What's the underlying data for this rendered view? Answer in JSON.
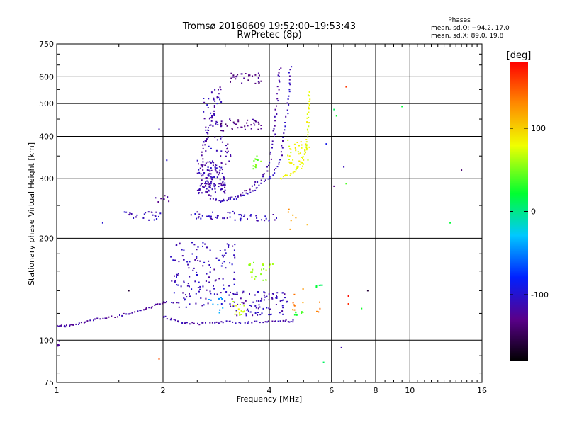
{
  "chart_data": {
    "type": "scatter",
    "title": "Tromsø 20160609 19:52:00–19:53:43",
    "subtitle": "RwPretec (8p)",
    "xlabel": "Frequency [MHz]",
    "ylabel": "Stationary phase Virtual Height [km]",
    "x_scale": "log",
    "y_scale": "log",
    "xlim": [
      1,
      16
    ],
    "ylim": [
      75,
      750
    ],
    "x_ticks": [
      1,
      2,
      4,
      6,
      8,
      10,
      16
    ],
    "x_tick_labels": [
      "1",
      "2",
      "4",
      "6",
      "8",
      "10",
      "16"
    ],
    "y_ticks": [
      75,
      100,
      200,
      300,
      400,
      500,
      600,
      750
    ],
    "y_tick_labels": [
      "75",
      "100",
      "200",
      "300",
      "400",
      "500",
      "600",
      "750"
    ],
    "grid": true,
    "info_box": {
      "heading": "Phases",
      "line1": "mean, sd,O: −94.2, 17.0",
      "line2": "mean, sd,X:  89.0, 19.8"
    },
    "colorbar": {
      "label": "[deg]",
      "range": [
        -180,
        180
      ],
      "ticks": [
        -100,
        0,
        100
      ],
      "tick_labels": [
        "-100",
        "0",
        "100"
      ]
    },
    "traces": [
      {
        "kind": "curve",
        "phase": -120,
        "points": [
          [
            1.0,
            110
          ],
          [
            1.06,
            110
          ],
          [
            1.12,
            111
          ],
          [
            1.22,
            114
          ],
          [
            1.35,
            116
          ],
          [
            1.5,
            118
          ],
          [
            1.65,
            121
          ],
          [
            1.8,
            124
          ],
          [
            1.95,
            128
          ],
          [
            2.05,
            130
          ]
        ],
        "jitter": 0.006,
        "count": 60
      },
      {
        "kind": "curve",
        "phase": -115,
        "points": [
          [
            2.0,
            118
          ],
          [
            2.15,
            114
          ],
          [
            2.35,
            112
          ],
          [
            2.6,
            112
          ],
          [
            2.9,
            113
          ],
          [
            3.2,
            113
          ],
          [
            3.6,
            113
          ],
          [
            4.0,
            114
          ],
          [
            4.4,
            114
          ],
          [
            4.7,
            114
          ]
        ],
        "jitter": 0.008,
        "count": 60
      },
      {
        "kind": "curve",
        "phase": -120,
        "points": [
          [
            2.55,
            270
          ],
          [
            2.57,
            330
          ],
          [
            2.62,
            380
          ],
          [
            2.7,
            430
          ],
          [
            2.8,
            490
          ],
          [
            2.9,
            560
          ]
        ],
        "jitter": 0.01,
        "count": 35
      },
      {
        "kind": "curve",
        "phase": -118,
        "points": [
          [
            2.6,
            330
          ],
          [
            2.65,
            280
          ],
          [
            2.75,
            262
          ],
          [
            2.95,
            258
          ],
          [
            3.2,
            266
          ],
          [
            3.5,
            280
          ],
          [
            3.8,
            300
          ],
          [
            4.0,
            330
          ],
          [
            4.1,
            380
          ],
          [
            4.15,
            430
          ],
          [
            4.2,
            500
          ],
          [
            4.25,
            580
          ],
          [
            4.3,
            640
          ]
        ],
        "jitter": 0.008,
        "count": 70
      },
      {
        "kind": "curve",
        "phase": -110,
        "points": [
          [
            2.9,
            255
          ],
          [
            3.2,
            262
          ],
          [
            3.5,
            272
          ],
          [
            3.8,
            288
          ],
          [
            4.1,
            310
          ],
          [
            4.3,
            340
          ],
          [
            4.4,
            400
          ],
          [
            4.5,
            480
          ],
          [
            4.55,
            560
          ],
          [
            4.6,
            640
          ]
        ],
        "jitter": 0.008,
        "count": 60
      },
      {
        "kind": "curve",
        "phase": 80,
        "points": [
          [
            4.3,
            300
          ],
          [
            4.6,
            310
          ],
          [
            4.9,
            330
          ],
          [
            5.1,
            370
          ],
          [
            5.15,
            420
          ],
          [
            5.15,
            480
          ],
          [
            5.2,
            540
          ]
        ],
        "jitter": 0.008,
        "count": 50
      },
      {
        "kind": "cloud",
        "phase": -115,
        "x": [
          2.5,
          3.0
        ],
        "y": [
          270,
          340
        ],
        "count": 120
      },
      {
        "kind": "cloud",
        "phase": -110,
        "x": [
          2.1,
          3.2
        ],
        "y": [
          125,
          195
        ],
        "count": 150
      },
      {
        "kind": "cloud",
        "phase": -112,
        "x": [
          3.2,
          4.5
        ],
        "y": [
          118,
          140
        ],
        "count": 80
      },
      {
        "kind": "cloud",
        "phase": 60,
        "x": [
          3.5,
          4.1
        ],
        "y": [
          150,
          170
        ],
        "count": 22
      },
      {
        "kind": "cloud",
        "phase": 75,
        "x": [
          3.1,
          3.4
        ],
        "y": [
          118,
          130
        ],
        "count": 15
      },
      {
        "kind": "cloud",
        "phase": -45,
        "x": [
          2.7,
          3.0
        ],
        "y": [
          120,
          135
        ],
        "count": 10
      },
      {
        "kind": "cloud",
        "phase": -130,
        "x": [
          2.9,
          3.8
        ],
        "y": [
          415,
          450
        ],
        "count": 40
      },
      {
        "kind": "cloud",
        "phase": -130,
        "x": [
          3.1,
          3.8
        ],
        "y": [
          570,
          615
        ],
        "count": 30
      },
      {
        "kind": "cloud",
        "phase": -110,
        "x": [
          2.6,
          2.95
        ],
        "y": [
          350,
          560
        ],
        "count": 50
      },
      {
        "kind": "cloud",
        "phase": -125,
        "x": [
          3.0,
          3.15
        ],
        "y": [
          330,
          380
        ],
        "count": 12
      },
      {
        "kind": "cloud",
        "phase": 80,
        "x": [
          4.5,
          5.2
        ],
        "y": [
          320,
          390
        ],
        "count": 40
      },
      {
        "kind": "cloud",
        "phase": 50,
        "x": [
          3.6,
          3.8
        ],
        "y": [
          320,
          350
        ],
        "count": 12
      },
      {
        "kind": "cloud",
        "phase": -110,
        "x": [
          1.55,
          2.0
        ],
        "y": [
          226,
          240
        ],
        "count": 25
      },
      {
        "kind": "cloud",
        "phase": -110,
        "x": [
          2.4,
          3.3
        ],
        "y": [
          226,
          240
        ],
        "count": 30
      },
      {
        "kind": "cloud",
        "phase": -110,
        "x": [
          3.3,
          4.2
        ],
        "y": [
          225,
          235
        ],
        "count": 25
      },
      {
        "kind": "cloud",
        "phase": -120,
        "x": [
          1.9,
          2.1
        ],
        "y": [
          255,
          270
        ],
        "count": 8
      },
      {
        "kind": "cloud",
        "phase": 120,
        "x": [
          4.5,
          5.3
        ],
        "y": [
          210,
          245
        ],
        "count": 7
      },
      {
        "kind": "cloud",
        "phase": 130,
        "x": [
          4.6,
          5.6
        ],
        "y": [
          120,
          145
        ],
        "count": 12
      },
      {
        "kind": "cloud",
        "phase": 15,
        "x": [
          5.4,
          5.8
        ],
        "y": [
          143,
          148
        ],
        "count": 6
      },
      {
        "kind": "cloud",
        "phase": 30,
        "x": [
          4.6,
          5.0
        ],
        "y": [
          118,
          122
        ],
        "count": 8
      },
      {
        "kind": "cloud",
        "phase": -120,
        "x": [
          0.98,
          1.02
        ],
        "y": [
          96,
          100
        ],
        "count": 10
      }
    ],
    "isolated_points": [
      {
        "x": 6.6,
        "y": 560,
        "phase": 160
      },
      {
        "x": 9.5,
        "y": 490,
        "phase": 20
      },
      {
        "x": 6.1,
        "y": 480,
        "phase": 10
      },
      {
        "x": 6.2,
        "y": 460,
        "phase": 25
      },
      {
        "x": 5.8,
        "y": 380,
        "phase": -90
      },
      {
        "x": 6.5,
        "y": 325,
        "phase": -110
      },
      {
        "x": 14.0,
        "y": 318,
        "phase": -140
      },
      {
        "x": 6.1,
        "y": 285,
        "phase": -130
      },
      {
        "x": 6.6,
        "y": 290,
        "phase": 40
      },
      {
        "x": 13.0,
        "y": 222,
        "phase": 20
      },
      {
        "x": 1.35,
        "y": 222,
        "phase": -100
      },
      {
        "x": 6.7,
        "y": 135,
        "phase": 175
      },
      {
        "x": 6.7,
        "y": 128,
        "phase": 165
      },
      {
        "x": 7.3,
        "y": 124,
        "phase": 25
      },
      {
        "x": 7.6,
        "y": 140,
        "phase": -160
      },
      {
        "x": 6.4,
        "y": 95,
        "phase": -115
      },
      {
        "x": 5.7,
        "y": 86,
        "phase": 10
      },
      {
        "x": 1.6,
        "y": 140,
        "phase": -160
      },
      {
        "x": 1.95,
        "y": 88,
        "phase": 150
      },
      {
        "x": 2.05,
        "y": 340,
        "phase": -100
      },
      {
        "x": 1.95,
        "y": 420,
        "phase": -110
      }
    ]
  }
}
